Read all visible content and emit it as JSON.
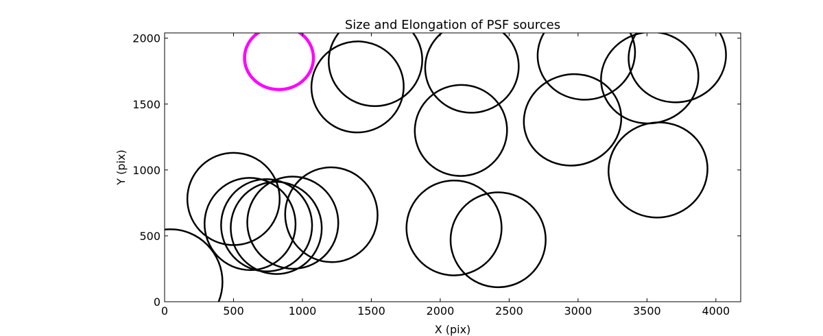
{
  "chart_data": {
    "type": "scatter",
    "title": "Size and Elongation of PSF sources",
    "xlabel": "X (pix)",
    "ylabel": "Y (pix)",
    "xlim": [
      0,
      4180
    ],
    "ylim": [
      0,
      2040
    ],
    "xticks": [
      0,
      500,
      1000,
      1500,
      2000,
      2500,
      3000,
      3500,
      4000
    ],
    "yticks": [
      0,
      500,
      1000,
      1500,
      2000
    ],
    "xtick_labels": [
      "0",
      "500",
      "1000",
      "1500",
      "2000",
      "2500",
      "3000",
      "3500",
      "4000"
    ],
    "ytick_labels": [
      "0",
      "500",
      "1000",
      "1500",
      "2000"
    ],
    "grid": false,
    "colors": {
      "default": "#000000",
      "highlight": "#ff00ff"
    },
    "ellipses": [
      {
        "x": 40,
        "y": 150,
        "width": 760,
        "height": 800,
        "angle": 0,
        "color": "#000000"
      },
      {
        "x": 830,
        "y": 1850,
        "width": 500,
        "height": 480,
        "angle": 0,
        "color": "#ff00ff",
        "highlight": true
      },
      {
        "x": 500,
        "y": 780,
        "width": 670,
        "height": 700,
        "angle": -10,
        "color": "#000000"
      },
      {
        "x": 620,
        "y": 590,
        "width": 660,
        "height": 700,
        "angle": -10,
        "color": "#000000"
      },
      {
        "x": 740,
        "y": 580,
        "width": 660,
        "height": 700,
        "angle": -10,
        "color": "#000000"
      },
      {
        "x": 810,
        "y": 560,
        "width": 660,
        "height": 700,
        "angle": -10,
        "color": "#000000"
      },
      {
        "x": 930,
        "y": 600,
        "width": 660,
        "height": 700,
        "angle": -10,
        "color": "#000000"
      },
      {
        "x": 1210,
        "y": 660,
        "width": 670,
        "height": 720,
        "angle": -10,
        "color": "#000000"
      },
      {
        "x": 1530,
        "y": 1830,
        "width": 680,
        "height": 690,
        "angle": -15,
        "color": "#000000"
      },
      {
        "x": 1400,
        "y": 1630,
        "width": 670,
        "height": 690,
        "angle": -15,
        "color": "#000000"
      },
      {
        "x": 2230,
        "y": 1780,
        "width": 680,
        "height": 690,
        "angle": -15,
        "color": "#000000"
      },
      {
        "x": 2150,
        "y": 1300,
        "width": 670,
        "height": 690,
        "angle": -15,
        "color": "#000000"
      },
      {
        "x": 2100,
        "y": 560,
        "width": 690,
        "height": 720,
        "angle": -15,
        "color": "#000000"
      },
      {
        "x": 2420,
        "y": 470,
        "width": 690,
        "height": 720,
        "angle": -15,
        "color": "#000000"
      },
      {
        "x": 3060,
        "y": 1880,
        "width": 710,
        "height": 690,
        "angle": -15,
        "color": "#000000"
      },
      {
        "x": 2960,
        "y": 1380,
        "width": 710,
        "height": 690,
        "angle": -15,
        "color": "#000000"
      },
      {
        "x": 3520,
        "y": 1700,
        "width": 710,
        "height": 690,
        "angle": -15,
        "color": "#000000"
      },
      {
        "x": 3720,
        "y": 1860,
        "width": 710,
        "height": 690,
        "angle": -15,
        "color": "#000000"
      },
      {
        "x": 3580,
        "y": 1000,
        "width": 720,
        "height": 720,
        "angle": -15,
        "color": "#000000"
      }
    ]
  }
}
